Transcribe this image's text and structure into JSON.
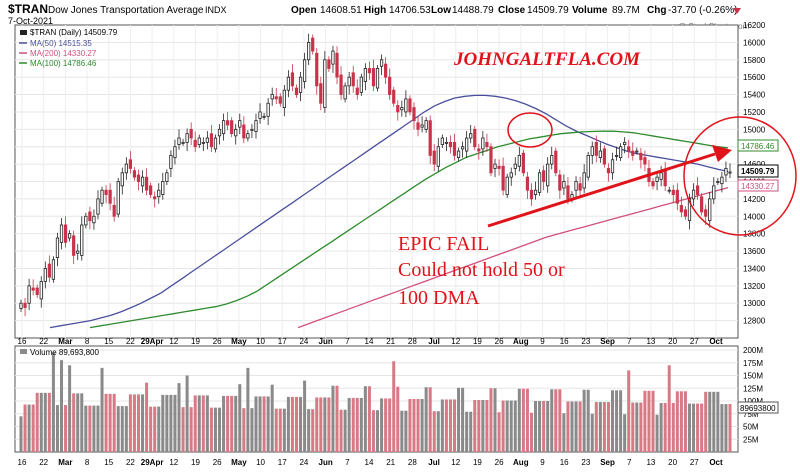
{
  "header": {
    "symbol": "$TRAN",
    "name": "Dow Jones Transportation Average",
    "exchange": "INDX",
    "date": "7-Oct-2021",
    "open_label": "Open",
    "open": "14608.51",
    "high_label": "High",
    "high": "14706.53",
    "low_label": "Low",
    "low": "14488.79",
    "close_label": "Close",
    "close": "14509.79",
    "volume_label": "Volume",
    "volume": "89.7M",
    "chg_label": "Chg",
    "chg": "-37.70 (-0.26%)",
    "watermark": "@ StockCharts.com"
  },
  "legend": {
    "price": "$TRAN (Daily) 14509.79",
    "ma50": "MA(50) 14515.35",
    "ma200": "MA(200) 14330.27",
    "ma100": "MA(100) 14786.46",
    "volume": "Volume 89,693,800"
  },
  "annotations": {
    "brand": "JOHNGALTFLA.COM",
    "epic": [
      "EPIC FAIL",
      "Could not hold 50 or",
      "100 DMA"
    ]
  },
  "colors": {
    "up": "#222222",
    "down": "#c8334a",
    "ma50": "#4a4f9c",
    "ma100": "#2e8b2e",
    "ma200": "#d0507a",
    "annotation": "#e0131b",
    "vol_up": "#8a8a8a",
    "vol_down": "#d77a86"
  },
  "chart_data": {
    "type": "candlestick",
    "ylim": [
      12600,
      16200
    ],
    "y_ticks": [
      "12800",
      "13000",
      "13200",
      "13400",
      "13600",
      "13800",
      "14000",
      "14200",
      "14400",
      "14600",
      "14800",
      "15000",
      "15200",
      "15400",
      "15600",
      "15800",
      "16000",
      "16200"
    ],
    "x_ticks": [
      "16",
      "22",
      "Mar",
      "8",
      "15",
      "22",
      "29Apr",
      "12",
      "19",
      "26",
      "May",
      "10",
      "17",
      "24",
      "Jun",
      "7",
      "14",
      "21",
      "28",
      "Jul",
      "12",
      "19",
      "26",
      "Aug",
      "9",
      "16",
      "23",
      "Sep",
      "7",
      "13",
      "20",
      "27",
      "Oct"
    ],
    "price_tags": {
      "ma100": "14786.46",
      "close": "14509.79",
      "ma200": "14330.27"
    },
    "closes": [
      13000,
      12950,
      13200,
      13150,
      13100,
      13250,
      13400,
      13300,
      13500,
      13750,
      13900,
      13700,
      13800,
      13550,
      13600,
      13900,
      14000,
      13950,
      14000,
      14200,
      14300,
      14250,
      14150,
      14000,
      14400,
      14500,
      14600,
      14550,
      14450,
      14400,
      14450,
      14300,
      14250,
      14200,
      14300,
      14400,
      14500,
      14700,
      14800,
      14900,
      14850,
      14950,
      14900,
      14800,
      14900,
      14850,
      14900,
      14800,
      14900,
      15000,
      15100,
      15050,
      14950,
      15000,
      15100,
      14900,
      14950,
      15000,
      15100,
      15200,
      15150,
      15300,
      15400,
      15350,
      15300,
      15450,
      15600,
      15500,
      15400,
      15600,
      15800,
      16000,
      15900,
      15500,
      15300,
      15800,
      15700,
      15900,
      15600,
      15400,
      15500,
      15600,
      15500,
      15400,
      15600,
      15700,
      15650,
      15500,
      15700,
      15800,
      15600,
      15400,
      15300,
      15200,
      15250,
      15350,
      15200,
      15100,
      15000,
      15050,
      15100,
      14700,
      14600,
      14800,
      14900,
      14850,
      14800,
      14700,
      14750,
      14800,
      14900,
      14950,
      14800,
      14750,
      14900,
      14800,
      14500,
      14600,
      14550,
      14300,
      14450,
      14500,
      14600,
      14700,
      14500,
      14300,
      14200,
      14300,
      14500,
      14400,
      14600,
      14700,
      14500,
      14300,
      14400,
      14200,
      14250,
      14400,
      14300,
      14500,
      14700,
      14800,
      14700,
      14750,
      14600,
      14500,
      14650,
      14700,
      14800,
      14850,
      14750,
      14700,
      14750,
      14650,
      14600,
      14400,
      14350,
      14450,
      14500,
      14350,
      14300,
      14250,
      14150,
      14050,
      14000,
      14200,
      14300,
      14250,
      14050,
      14000,
      14200,
      14350,
      14400,
      14450,
      14550,
      14509
    ],
    "ma50": [
      12720,
      12740,
      12760,
      12780,
      12800,
      12830,
      12860,
      12900,
      12950,
      13000,
      13060,
      13120,
      13200,
      13280,
      13360,
      13440,
      13520,
      13600,
      13680,
      13760,
      13840,
      13920,
      14000,
      14080,
      14160,
      14240,
      14320,
      14400,
      14480,
      14560,
      14640,
      14720,
      14800,
      14880,
      14960,
      15040,
      15120,
      15200,
      15270,
      15320,
      15360,
      15380,
      15390,
      15390,
      15380,
      15360,
      15330,
      15290,
      15240,
      15180,
      15110,
      15040,
      14980,
      14930,
      14880,
      14830,
      14790,
      14750,
      14720,
      14700,
      14680,
      14660,
      14640,
      14620,
      14600,
      14570,
      14540,
      14515
    ],
    "ma100": [
      12720,
      12740,
      12760,
      12780,
      12800,
      12820,
      12840,
      12860,
      12880,
      12900,
      12920,
      12940,
      12960,
      12990,
      13030,
      13080,
      13140,
      13220,
      13300,
      13380,
      13460,
      13540,
      13620,
      13700,
      13780,
      13860,
      13940,
      14020,
      14100,
      14180,
      14260,
      14340,
      14420,
      14490,
      14560,
      14620,
      14680,
      14720,
      14760,
      14800,
      14830,
      14860,
      14890,
      14910,
      14930,
      14950,
      14960,
      14970,
      14975,
      14980,
      14978,
      14970,
      14960,
      14940,
      14920,
      14900,
      14880,
      14860,
      14840,
      14820,
      14800,
      14786
    ],
    "ma200": [
      12720,
      12760,
      12800,
      12840,
      12880,
      12920,
      12960,
      13000,
      13040,
      13080,
      13120,
      13160,
      13200,
      13240,
      13280,
      13320,
      13360,
      13400,
      13440,
      13480,
      13520,
      13560,
      13600,
      13640,
      13680,
      13720,
      13760,
      13790,
      13820,
      13850,
      13880,
      13910,
      13940,
      13970,
      14000,
      14030,
      14060,
      14090,
      14120,
      14150,
      14180,
      14210,
      14240,
      14270,
      14300,
      14330
    ]
  },
  "volume_data": {
    "ylim": [
      0,
      200
    ],
    "y_ticks": [
      "25M",
      "50M",
      "75M",
      "100M",
      "125M",
      "150M",
      "175M",
      "200M"
    ],
    "tag": "89693800"
  }
}
